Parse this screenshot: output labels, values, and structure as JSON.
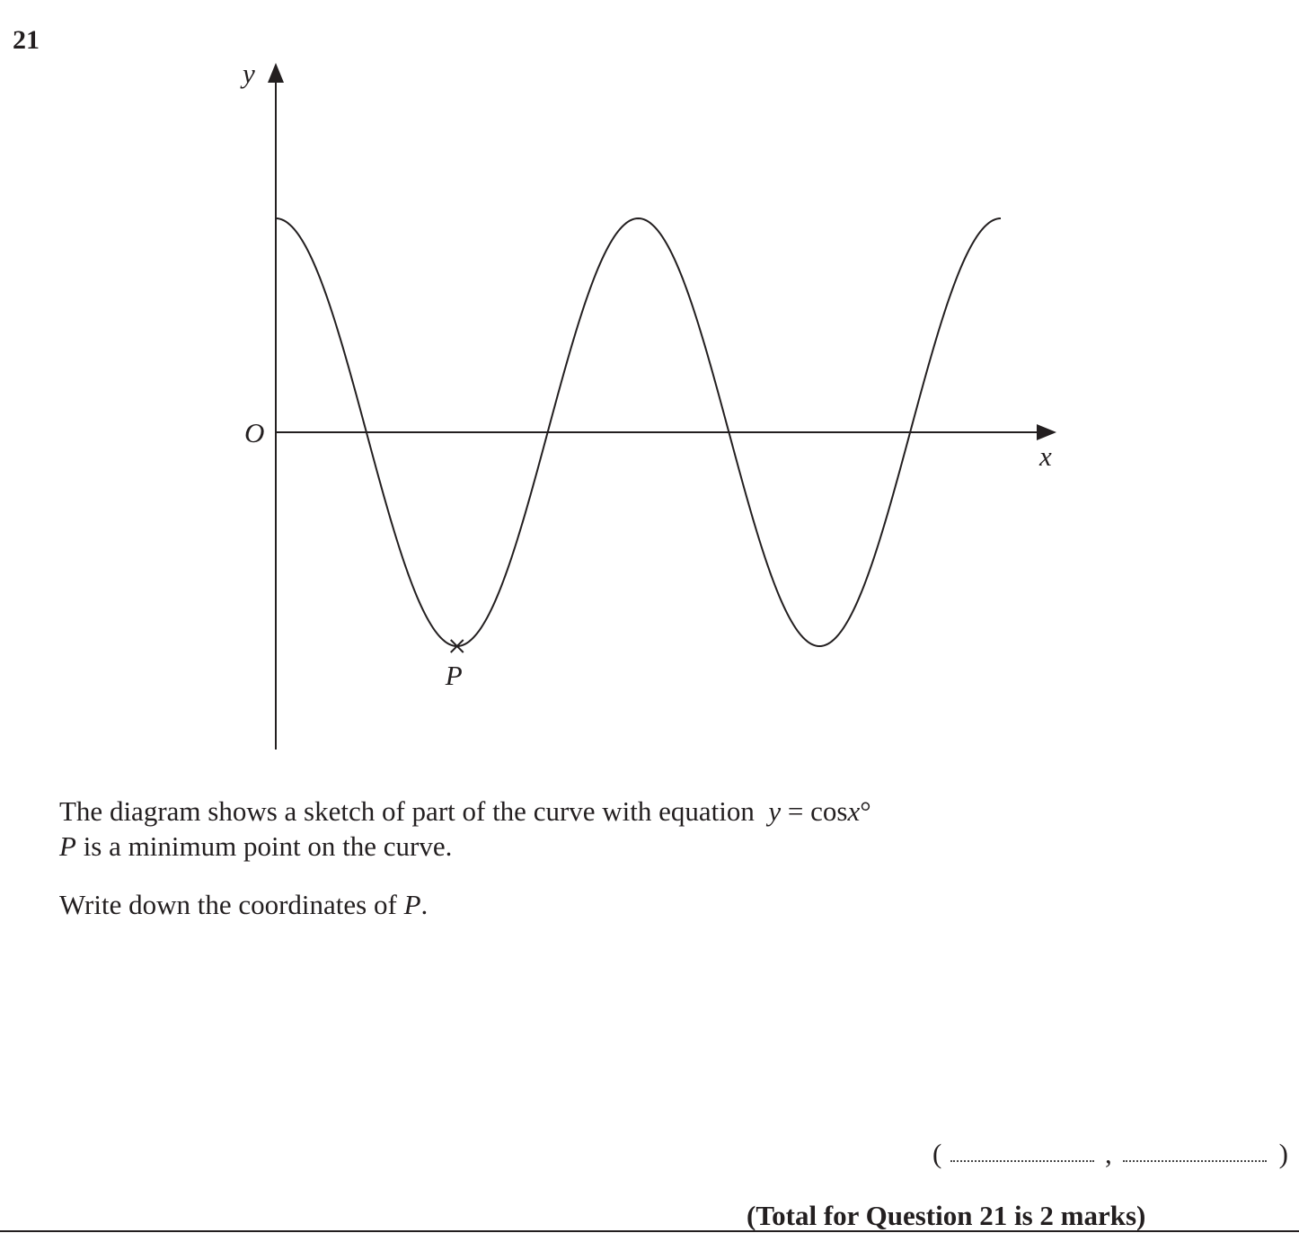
{
  "question": {
    "number": "21",
    "line1_text": "The diagram shows a sketch of part of the curve with equation",
    "equation": {
      "y": "y",
      "equals": " = cos",
      "x": "x",
      "degree": "°"
    },
    "line2": {
      "point": "P",
      "rest": " is a minimum point on the curve."
    },
    "line3": {
      "text": "Write down the coordinates of ",
      "point": "P",
      "end": "."
    },
    "answer": {
      "open": "(",
      "comma": ",",
      "close": ")"
    },
    "total": "(Total for Question 21 is 2 marks)"
  },
  "diagram": {
    "y_axis_label": "y",
    "x_axis_label": "x",
    "origin_label": "O",
    "point_label": "P",
    "curve": {
      "function": "cos",
      "x_start_deg": 0,
      "x_end_deg": 720,
      "minimum_marked_deg": 180
    },
    "stroke_color": "#231f20"
  }
}
